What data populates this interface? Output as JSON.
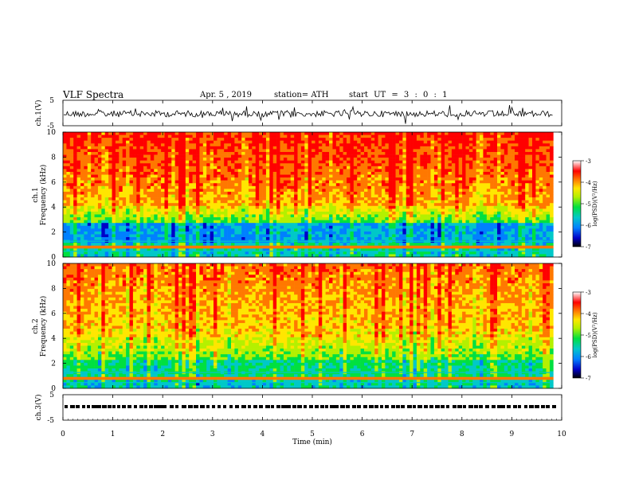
{
  "header": {
    "title": "VLF  Spectra",
    "date": "Apr. 5  , 2019",
    "station": "station= ATH",
    "start": "start  UT  =    3  : 0   : 1"
  },
  "chart_data": [
    {
      "type": "line",
      "name": "ch1-waveform",
      "ylabel": "ch.1(V)",
      "ylim": [
        -5,
        5
      ],
      "yticks": [
        "5",
        "-5"
      ],
      "xlim": [
        0,
        10
      ]
    },
    {
      "type": "heatmap",
      "name": "ch1-spectrogram",
      "ylabel": "ch.1\nFrequency (kHz)",
      "ylabel_lines": [
        "ch.1",
        "Frequency (kHz)"
      ],
      "ylim": [
        0,
        10
      ],
      "yticks": [
        "0",
        "2",
        "4",
        "6",
        "8",
        "10"
      ],
      "xlim": [
        0,
        10
      ],
      "data_xmax": 9.83,
      "colorbar": {
        "label": "log(PSD)(V²/Hz)",
        "range": [
          -7,
          -3
        ],
        "ticks": [
          "-3",
          "-4",
          "-5",
          "-6",
          "-7"
        ]
      }
    },
    {
      "type": "heatmap",
      "name": "ch2-spectrogram",
      "ylabel": "ch.2\nFrequency (kHz)",
      "ylabel_lines": [
        "ch.2",
        "Frequency (kHz)"
      ],
      "ylim": [
        0,
        10
      ],
      "yticks": [
        "0",
        "2",
        "4",
        "6",
        "8",
        "10"
      ],
      "xlim": [
        0,
        10
      ],
      "data_xmax": 9.83,
      "colorbar": {
        "label": "log(PSD)(V²/Hz)",
        "range": [
          -7,
          -3
        ],
        "ticks": [
          "-3",
          "-4",
          "-5",
          "-6",
          "-7"
        ]
      }
    },
    {
      "type": "line",
      "name": "ch3-waveform",
      "ylabel": "ch.3(V)",
      "ylim": [
        -5,
        5
      ],
      "yticks": [
        "5",
        "-5"
      ],
      "xlim": [
        0,
        10
      ],
      "xlabel": "Time  (min)",
      "xticks": [
        "0",
        "1",
        "2",
        "3",
        "4",
        "5",
        "6",
        "7",
        "8",
        "9",
        "10"
      ]
    }
  ],
  "colors": {
    "ink": "#000000",
    "colormap": [
      "#000000",
      "#0000c8",
      "#0080ff",
      "#00c8c8",
      "#00e040",
      "#b4f000",
      "#ffe600",
      "#ff7800",
      "#ff0000",
      "#ffffff"
    ]
  }
}
